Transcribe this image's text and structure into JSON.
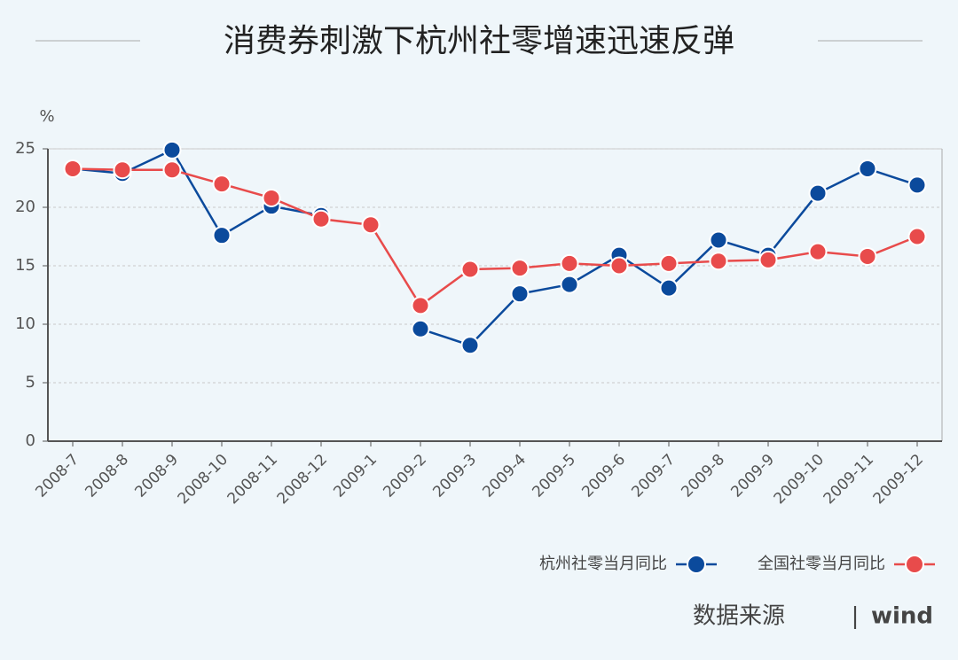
{
  "chart_data": {
    "type": "line",
    "title": "消费券刺激下杭州社零增速迅速反弹",
    "y_label": "%",
    "categories": [
      "2008-7",
      "2008-8",
      "2008-9",
      "2008-10",
      "2008-11",
      "2008-12",
      "2009-1",
      "2009-2",
      "2009-3",
      "2009-4",
      "2009-5",
      "2009-6",
      "2009-7",
      "2009-8",
      "2009-9",
      "2009-10",
      "2009-11",
      "2009-12"
    ],
    "series": [
      {
        "name": "杭州社零当月同比",
        "color": "#0b4a9c",
        "values": [
          23.3,
          22.9,
          24.9,
          17.6,
          20.1,
          19.3,
          null,
          9.6,
          8.2,
          12.6,
          13.4,
          15.9,
          13.1,
          17.2,
          15.9,
          21.2,
          23.3,
          21.9
        ]
      },
      {
        "name": "全国社零当月同比",
        "color": "#e84b4b",
        "values": [
          23.3,
          23.2,
          23.2,
          22.0,
          20.8,
          19.0,
          18.5,
          11.6,
          14.7,
          14.8,
          15.2,
          15.0,
          15.2,
          15.4,
          15.5,
          16.2,
          15.8,
          17.5
        ]
      }
    ],
    "ylim": [
      0,
      25
    ],
    "yticks": [
      0,
      5,
      10,
      15,
      20,
      25
    ],
    "grid": true,
    "legend": "bottom-right",
    "source": {
      "label": "数据来源",
      "separator": "|",
      "name": "wind"
    }
  }
}
